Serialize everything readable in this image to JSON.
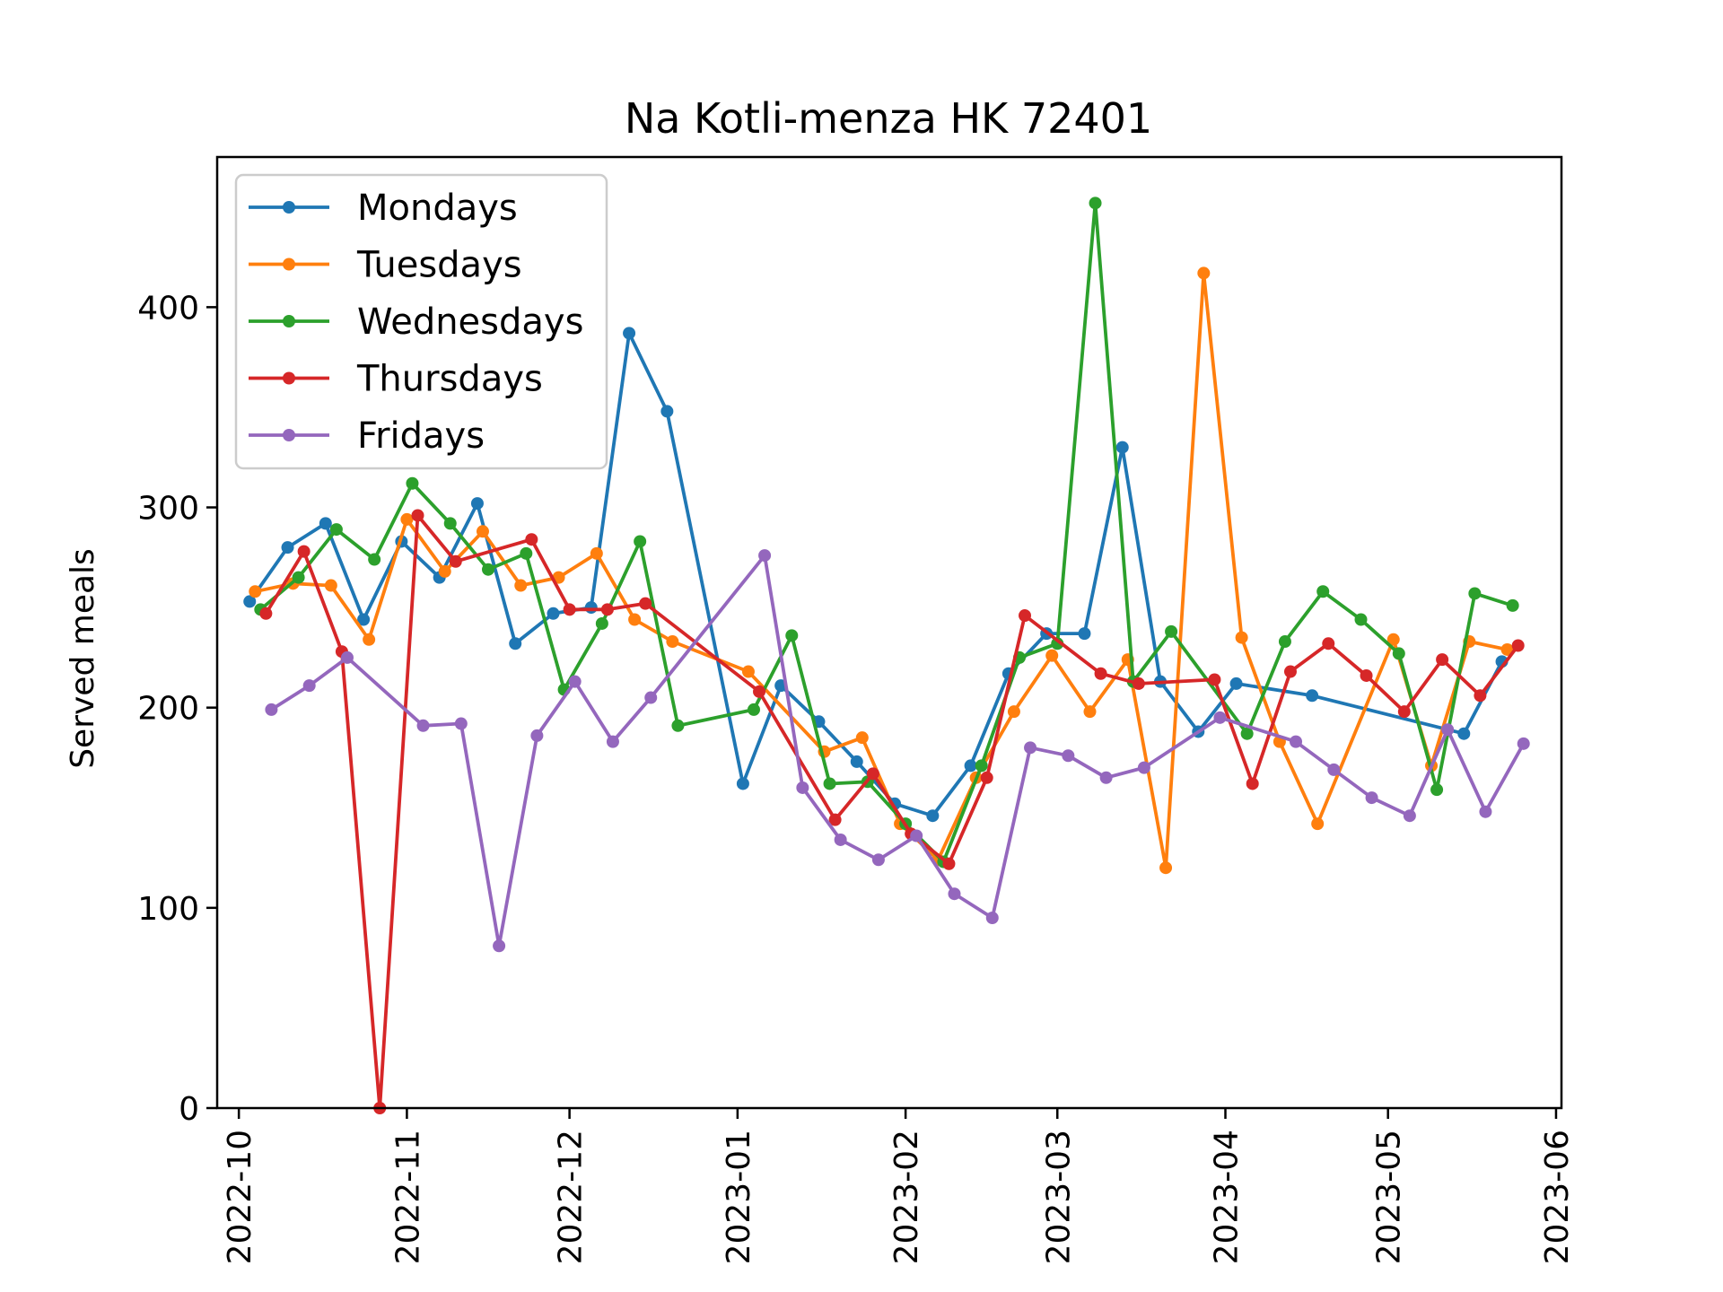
{
  "chart_data": {
    "type": "line",
    "title": "Na Kotli-menza HK 72401",
    "xlabel": "",
    "ylabel": "Served meals",
    "ylim": [
      0,
      475
    ],
    "xlim": [
      "2022-09-27",
      "2023-06-02"
    ],
    "yticks": [
      0,
      100,
      200,
      300,
      400
    ],
    "xticks": [
      "2022-10",
      "2022-11",
      "2022-12",
      "2023-01",
      "2023-02",
      "2023-03",
      "2023-04",
      "2023-05",
      "2023-06"
    ],
    "legend": "upper-left",
    "series": [
      {
        "name": "Mondays",
        "color": "#1f77b4",
        "points": [
          [
            "2022-10-03",
            253
          ],
          [
            "2022-10-10",
            280
          ],
          [
            "2022-10-17",
            292
          ],
          [
            "2022-10-24",
            244
          ],
          [
            "2022-10-31",
            283
          ],
          [
            "2022-11-07",
            265
          ],
          [
            "2022-11-14",
            302
          ],
          [
            "2022-11-21",
            232
          ],
          [
            "2022-11-28",
            247
          ],
          [
            "2022-12-05",
            250
          ],
          [
            "2022-12-12",
            387
          ],
          [
            "2022-12-19",
            348
          ],
          [
            "2023-01-02",
            162
          ],
          [
            "2023-01-09",
            211
          ],
          [
            "2023-01-16",
            193
          ],
          [
            "2023-01-23",
            173
          ],
          [
            "2023-01-30",
            152
          ],
          [
            "2023-02-06",
            146
          ],
          [
            "2023-02-13",
            171
          ],
          [
            "2023-02-20",
            217
          ],
          [
            "2023-02-27",
            237
          ],
          [
            "2023-03-06",
            237
          ],
          [
            "2023-03-13",
            330
          ],
          [
            "2023-03-20",
            213
          ],
          [
            "2023-03-27",
            188
          ],
          [
            "2023-04-03",
            212
          ],
          [
            "2023-04-17",
            206
          ],
          [
            "2023-05-15",
            187
          ],
          [
            "2023-05-22",
            223
          ]
        ]
      },
      {
        "name": "Tuesdays",
        "color": "#ff7f0e",
        "points": [
          [
            "2022-10-04",
            258
          ],
          [
            "2022-10-11",
            262
          ],
          [
            "2022-10-18",
            261
          ],
          [
            "2022-10-25",
            234
          ],
          [
            "2022-11-01",
            294
          ],
          [
            "2022-11-08",
            268
          ],
          [
            "2022-11-15",
            288
          ],
          [
            "2022-11-22",
            261
          ],
          [
            "2022-11-29",
            265
          ],
          [
            "2022-12-06",
            277
          ],
          [
            "2022-12-13",
            244
          ],
          [
            "2022-12-20",
            233
          ],
          [
            "2023-01-03",
            218
          ],
          [
            "2023-01-17",
            178
          ],
          [
            "2023-01-24",
            185
          ],
          [
            "2023-01-31",
            142
          ],
          [
            "2023-02-07",
            124
          ],
          [
            "2023-02-14",
            165
          ],
          [
            "2023-02-21",
            198
          ],
          [
            "2023-02-28",
            226
          ],
          [
            "2023-03-07",
            198
          ],
          [
            "2023-03-14",
            224
          ],
          [
            "2023-03-21",
            120
          ],
          [
            "2023-03-28",
            417
          ],
          [
            "2023-04-04",
            235
          ],
          [
            "2023-04-11",
            183
          ],
          [
            "2023-04-18",
            142
          ],
          [
            "2023-05-02",
            234
          ],
          [
            "2023-05-09",
            171
          ],
          [
            "2023-05-16",
            233
          ],
          [
            "2023-05-23",
            229
          ]
        ]
      },
      {
        "name": "Wednesdays",
        "color": "#2ca02c",
        "points": [
          [
            "2022-10-05",
            249
          ],
          [
            "2022-10-12",
            265
          ],
          [
            "2022-10-19",
            289
          ],
          [
            "2022-10-26",
            274
          ],
          [
            "2022-11-02",
            312
          ],
          [
            "2022-11-09",
            292
          ],
          [
            "2022-11-16",
            269
          ],
          [
            "2022-11-23",
            277
          ],
          [
            "2022-11-30",
            209
          ],
          [
            "2022-12-07",
            242
          ],
          [
            "2022-12-14",
            283
          ],
          [
            "2022-12-21",
            191
          ],
          [
            "2023-01-04",
            199
          ],
          [
            "2023-01-11",
            236
          ],
          [
            "2023-01-18",
            162
          ],
          [
            "2023-01-25",
            163
          ],
          [
            "2023-02-01",
            142
          ],
          [
            "2023-02-08",
            123
          ],
          [
            "2023-02-15",
            171
          ],
          [
            "2023-02-22",
            225
          ],
          [
            "2023-03-01",
            232
          ],
          [
            "2023-03-08",
            452
          ],
          [
            "2023-03-15",
            213
          ],
          [
            "2023-03-22",
            238
          ],
          [
            "2023-04-05",
            187
          ],
          [
            "2023-04-12",
            233
          ],
          [
            "2023-04-19",
            258
          ],
          [
            "2023-04-26",
            244
          ],
          [
            "2023-05-03",
            227
          ],
          [
            "2023-05-10",
            159
          ],
          [
            "2023-05-17",
            257
          ],
          [
            "2023-05-24",
            251
          ]
        ]
      },
      {
        "name": "Thursdays",
        "color": "#d62728",
        "points": [
          [
            "2022-10-06",
            247
          ],
          [
            "2022-10-13",
            278
          ],
          [
            "2022-10-20",
            228
          ],
          [
            "2022-10-27",
            0
          ],
          [
            "2022-11-03",
            296
          ],
          [
            "2022-11-10",
            273
          ],
          [
            "2022-11-24",
            284
          ],
          [
            "2022-12-01",
            249
          ],
          [
            "2022-12-08",
            249
          ],
          [
            "2022-12-15",
            252
          ],
          [
            "2023-01-05",
            208
          ],
          [
            "2023-01-19",
            144
          ],
          [
            "2023-01-26",
            167
          ],
          [
            "2023-02-02",
            137
          ],
          [
            "2023-02-09",
            122
          ],
          [
            "2023-02-16",
            165
          ],
          [
            "2023-02-23",
            246
          ],
          [
            "2023-03-09",
            217
          ],
          [
            "2023-03-16",
            212
          ],
          [
            "2023-03-30",
            214
          ],
          [
            "2023-04-06",
            162
          ],
          [
            "2023-04-13",
            218
          ],
          [
            "2023-04-20",
            232
          ],
          [
            "2023-04-27",
            216
          ],
          [
            "2023-05-04",
            198
          ],
          [
            "2023-05-11",
            224
          ],
          [
            "2023-05-18",
            206
          ],
          [
            "2023-05-25",
            231
          ]
        ]
      },
      {
        "name": "Fridays",
        "color": "#9467bd",
        "points": [
          [
            "2022-10-07",
            199
          ],
          [
            "2022-10-14",
            211
          ],
          [
            "2022-10-21",
            225
          ],
          [
            "2022-11-04",
            191
          ],
          [
            "2022-11-11",
            192
          ],
          [
            "2022-11-18",
            81
          ],
          [
            "2022-11-25",
            186
          ],
          [
            "2022-12-02",
            213
          ],
          [
            "2022-12-09",
            183
          ],
          [
            "2022-12-16",
            205
          ],
          [
            "2023-01-06",
            276
          ],
          [
            "2023-01-13",
            160
          ],
          [
            "2023-01-20",
            134
          ],
          [
            "2023-01-27",
            124
          ],
          [
            "2023-02-03",
            136
          ],
          [
            "2023-02-10",
            107
          ],
          [
            "2023-02-17",
            95
          ],
          [
            "2023-02-24",
            180
          ],
          [
            "2023-03-03",
            176
          ],
          [
            "2023-03-10",
            165
          ],
          [
            "2023-03-17",
            170
          ],
          [
            "2023-03-31",
            195
          ],
          [
            "2023-04-14",
            183
          ],
          [
            "2023-04-21",
            169
          ],
          [
            "2023-04-28",
            155
          ],
          [
            "2023-05-05",
            146
          ],
          [
            "2023-05-12",
            189
          ],
          [
            "2023-05-19",
            148
          ],
          [
            "2023-05-26",
            182
          ]
        ]
      }
    ]
  }
}
